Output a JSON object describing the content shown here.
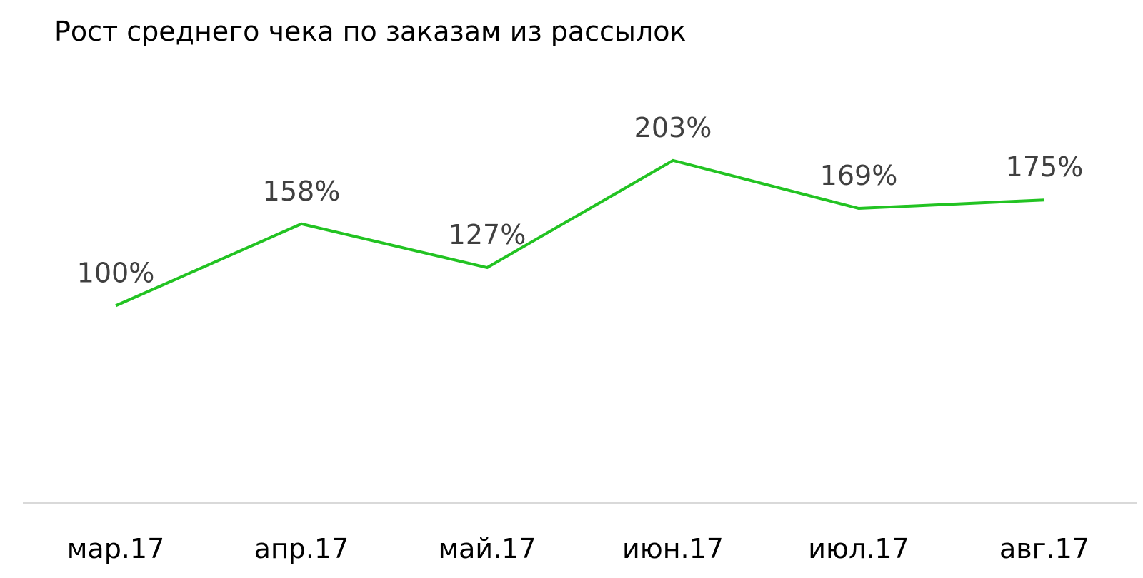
{
  "chart_data": {
    "type": "line",
    "title": "Рост среднего чека по заказам из рассылок",
    "categories": [
      "мар.17",
      "апр.17",
      "май.17",
      "июн.17",
      "июл.17",
      "авг.17"
    ],
    "series": [
      {
        "values": [
          100,
          158,
          127,
          203,
          169,
          175
        ],
        "data_labels": [
          "100%",
          "158%",
          "127%",
          "203%",
          "169%",
          "175%"
        ],
        "color": "#22C322"
      }
    ],
    "xlabel": "",
    "ylabel": "",
    "ylim": [
      -40,
      250
    ],
    "grid": false,
    "legend": "none",
    "axis_color": "#D9D9D9"
  }
}
